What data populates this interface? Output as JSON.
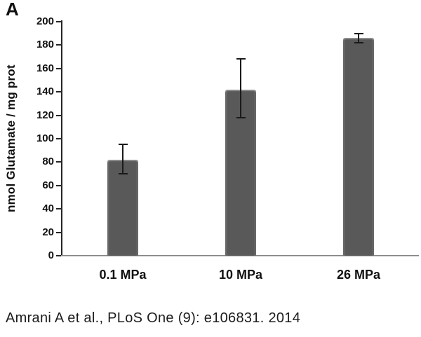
{
  "figure": {
    "panel_label": "A",
    "citation": "Amrani A et al., PLoS One (9): e106831. 2014"
  },
  "colors": {
    "background": "#ffffff",
    "bar_fill": "#595959",
    "error_bar": "#1a1a1a",
    "axis_line": "#262626",
    "text": "#111111"
  },
  "chart_data": {
    "type": "bar",
    "categories": [
      "0.1 MPa",
      "10 MPa",
      "26 MPa"
    ],
    "values": [
      82,
      142,
      186
    ],
    "error_bars": [
      {
        "low": 70,
        "high": 95
      },
      {
        "low": 118,
        "high": 168
      },
      {
        "low": 182,
        "high": 190
      }
    ],
    "title": "",
    "xlabel": "",
    "ylabel": "nmol Glutamate / mg prot",
    "ylim": [
      0,
      200
    ],
    "ytick_step": 20,
    "grid": false,
    "legend": false
  }
}
